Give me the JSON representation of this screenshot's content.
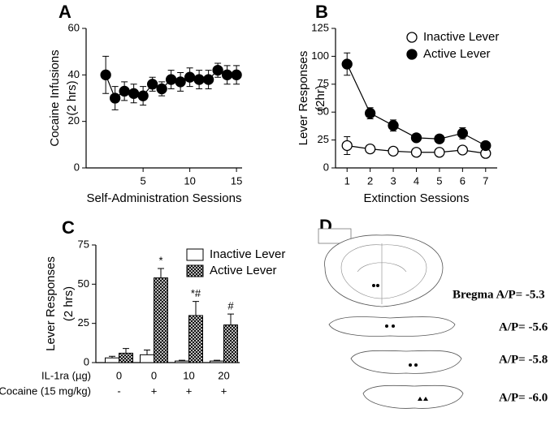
{
  "chart_data": [
    {
      "type": "line",
      "panel": "A",
      "ylabel": [
        "Cocaine Infusions",
        "(2 hrs)"
      ],
      "xlabel": "Self-Administration Sessions",
      "x": [
        1,
        2,
        3,
        4,
        5,
        6,
        7,
        8,
        9,
        10,
        11,
        12,
        13,
        14,
        15
      ],
      "xlim": [
        -1.1,
        15.6
      ],
      "xticks": [
        5,
        10,
        15
      ],
      "ylim": [
        0,
        60
      ],
      "yticks": [
        0,
        20,
        40,
        60
      ],
      "series": [
        {
          "color": "#000000",
          "marker_fill": "#000000",
          "values": [
            40,
            30,
            33,
            32,
            31,
            36,
            34,
            38,
            37,
            39,
            38,
            38,
            42,
            40,
            40
          ],
          "errors": [
            8,
            5,
            4,
            4,
            4,
            3,
            3,
            4,
            4,
            4,
            4,
            4,
            3,
            4,
            4
          ]
        }
      ]
    },
    {
      "type": "line",
      "panel": "B",
      "ylabel": [
        "Lever Responses",
        "(2hr)"
      ],
      "xlabel": "Extinction Sessions",
      "x": [
        1,
        2,
        3,
        4,
        5,
        6,
        7
      ],
      "xlim": [
        0.5,
        7.5
      ],
      "xticks": [
        1,
        2,
        3,
        4,
        5,
        6,
        7
      ],
      "ylim": [
        0,
        125
      ],
      "yticks": [
        0,
        25,
        50,
        75,
        100,
        125
      ],
      "legend": "upper right",
      "series": [
        {
          "name": "Inactive Lever",
          "color": "#000000",
          "marker_fill": "#ffffff",
          "values": [
            20,
            17,
            15,
            14,
            14,
            16,
            13
          ],
          "errors": [
            8,
            2,
            2,
            2,
            2,
            2,
            2
          ]
        },
        {
          "name": "Active Lever",
          "color": "#000000",
          "marker_fill": "#000000",
          "values": [
            93,
            49,
            38,
            27,
            26,
            31,
            20
          ],
          "errors": [
            10,
            5,
            5,
            2,
            2,
            5,
            3
          ]
        }
      ]
    },
    {
      "type": "bar",
      "panel": "C",
      "ylabel": [
        "Lever Responses",
        "(2 hrs)"
      ],
      "category_rows": [
        {
          "label": "IL-1ra (µg)",
          "values": [
            "0",
            "0",
            "10",
            "20"
          ]
        },
        {
          "label": "Cocaine (15 mg/kg)",
          "values": [
            "-",
            "+",
            "+",
            "+"
          ]
        }
      ],
      "ylim": [
        0,
        75
      ],
      "yticks": [
        0,
        25,
        50,
        75
      ],
      "legend": "upper right",
      "series": [
        {
          "name": "Inactive Lever",
          "color": "#ffffff",
          "pattern": "none",
          "values": [
            3,
            5,
            1,
            1
          ],
          "errors": [
            1,
            3,
            0.5,
            0.5
          ]
        },
        {
          "name": "Active Lever",
          "color": "#ffffff",
          "pattern": "crosshatch",
          "values": [
            6,
            54,
            30,
            24
          ],
          "errors": [
            3,
            6,
            9,
            7
          ],
          "annotations": [
            null,
            "*",
            "*#",
            "#"
          ]
        }
      ]
    }
  ],
  "panel_d": {
    "label": "D",
    "sections": [
      "Bregma A/P= -5.3",
      "A/P= -5.6",
      "A/P= -5.8",
      "A/P= -6.0"
    ]
  }
}
